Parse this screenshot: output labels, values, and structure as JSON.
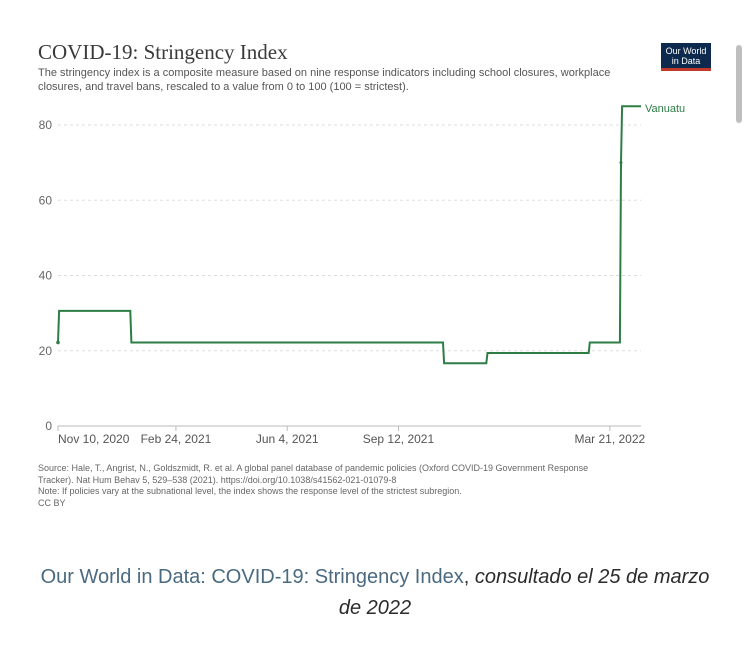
{
  "chart": {
    "title": "COVID-19: Stringency Index",
    "subtitle": "The stringency index is a composite measure based on nine response indicators including school closures, workplace closures, and travel bans, rescaled to a value from 0 to 100 (100 = strictest).",
    "logo_line1": "Our World",
    "logo_line2": "in Data",
    "source_lines": [
      "Source: Hale, T., Angrist, N., Goldszmidt, R. et al. A global panel database of pandemic policies (Oxford COVID-19 Government Response",
      "Tracker). Nat Hum Behav 5, 529–538 (2021). https://doi.org/10.1038/s41562-021-01079-8",
      "Note: If policies vary at the subnational level, the index shows the response level of the strictest subregion.",
      "CC BY"
    ]
  },
  "chart_data": {
    "type": "line",
    "title": "COVID-19: Stringency Index",
    "xlabel": "",
    "ylabel": "",
    "ylim": [
      0,
      80
    ],
    "y_ticks": [
      0,
      20,
      40,
      60,
      80
    ],
    "x_range": [
      "2020-11-10",
      "2022-04-18"
    ],
    "x_tick_labels": [
      {
        "date": "2020-11-10",
        "label": "Nov 10, 2020"
      },
      {
        "date": "2021-02-24",
        "label": "Feb 24, 2021"
      },
      {
        "date": "2021-06-04",
        "label": "Jun 4, 2021"
      },
      {
        "date": "2021-09-12",
        "label": "Sep 12, 2021"
      },
      {
        "date": "2022-03-21",
        "label": "Mar 21, 2022"
      }
    ],
    "grid": true,
    "line_color": "#2e7d45",
    "series": [
      {
        "name": "Vanuatu",
        "points": [
          {
            "x": "2020-11-10",
            "y": 22.2
          },
          {
            "x": "2020-11-11",
            "y": 30.6
          },
          {
            "x": "2021-01-14",
            "y": 30.6
          },
          {
            "x": "2021-01-15",
            "y": 22.2
          },
          {
            "x": "2021-10-22",
            "y": 22.2
          },
          {
            "x": "2021-10-23",
            "y": 16.7
          },
          {
            "x": "2021-11-30",
            "y": 16.7
          },
          {
            "x": "2021-12-01",
            "y": 19.4
          },
          {
            "x": "2022-03-02",
            "y": 19.4
          },
          {
            "x": "2022-03-03",
            "y": 22.2
          },
          {
            "x": "2022-03-30",
            "y": 22.2
          },
          {
            "x": "2022-03-31",
            "y": 70.0
          },
          {
            "x": "2022-04-01",
            "y": 85.0
          },
          {
            "x": "2022-04-18",
            "y": 85.0
          }
        ]
      }
    ]
  },
  "citation": {
    "link_text": "Our World in Data: COVID-19: Stringency Index",
    "separator": ", ",
    "note": "consultado el 25 de marzo de 2022"
  }
}
